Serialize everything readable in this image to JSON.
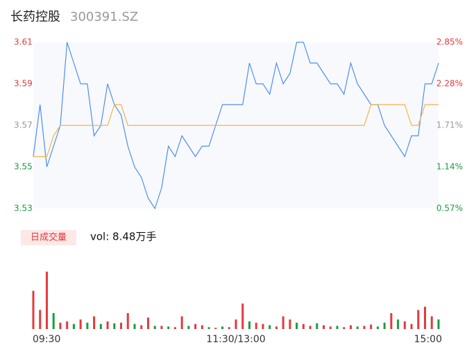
{
  "header": {
    "name": "长药控股",
    "code": "300391.SZ"
  },
  "chart_data": {
    "type": "intraday",
    "categories": [
      "09:30",
      null,
      null,
      null,
      null,
      null,
      null,
      null,
      null,
      null,
      null,
      null,
      null,
      null,
      null,
      null,
      null,
      null,
      null,
      null,
      null,
      null,
      null,
      null,
      null,
      null,
      null,
      null,
      null,
      null,
      "11:30/13:00",
      null,
      null,
      null,
      null,
      null,
      null,
      null,
      null,
      null,
      null,
      null,
      null,
      null,
      null,
      null,
      null,
      null,
      null,
      null,
      null,
      null,
      null,
      null,
      null,
      null,
      null,
      null,
      null,
      null,
      "15:00"
    ],
    "series": [
      {
        "name": "price",
        "color": "#4d8ef0",
        "values": [
          3.555,
          3.58,
          3.55,
          3.56,
          3.57,
          3.61,
          3.6,
          3.59,
          3.59,
          3.565,
          3.57,
          3.59,
          3.58,
          3.575,
          3.56,
          3.55,
          3.545,
          3.535,
          3.53,
          3.54,
          3.56,
          3.555,
          3.565,
          3.56,
          3.555,
          3.56,
          3.56,
          3.57,
          3.58,
          3.58,
          3.58,
          3.58,
          3.6,
          3.59,
          3.59,
          3.585,
          3.6,
          3.59,
          3.595,
          3.61,
          3.61,
          3.6,
          3.6,
          3.595,
          3.59,
          3.59,
          3.585,
          3.6,
          3.59,
          3.585,
          3.58,
          3.58,
          3.57,
          3.565,
          3.56,
          3.555,
          3.565,
          3.565,
          3.59,
          3.59,
          3.6
        ]
      },
      {
        "name": "average",
        "color": "#f5b342",
        "values": [
          3.555,
          3.555,
          3.555,
          3.565,
          3.57,
          3.57,
          3.57,
          3.57,
          3.57,
          3.57,
          3.57,
          3.57,
          3.58,
          3.58,
          3.57,
          3.57,
          3.57,
          3.57,
          3.57,
          3.57,
          3.57,
          3.57,
          3.57,
          3.57,
          3.57,
          3.57,
          3.57,
          3.57,
          3.57,
          3.57,
          3.57,
          3.57,
          3.57,
          3.57,
          3.57,
          3.57,
          3.57,
          3.57,
          3.57,
          3.57,
          3.57,
          3.57,
          3.57,
          3.57,
          3.57,
          3.57,
          3.57,
          3.57,
          3.57,
          3.57,
          3.58,
          3.58,
          3.58,
          3.58,
          3.58,
          3.58,
          3.57,
          3.57,
          3.58,
          3.58,
          3.58
        ]
      }
    ],
    "ylim": [
      3.53,
      3.61
    ],
    "yticks": [
      3.61,
      3.59,
      3.57,
      3.55,
      3.53
    ],
    "y2lim": [
      0.57,
      2.85
    ],
    "y2ticks": [
      {
        "value": 2.85,
        "label": "2.85%"
      },
      {
        "value": 2.28,
        "label": "2.28%"
      },
      {
        "value": 1.71,
        "label": "1.71%"
      },
      {
        "value": 1.14,
        "label": "1.14%"
      },
      {
        "value": 0.57,
        "label": "0.57%"
      }
    ],
    "volume_label": "日成交量",
    "volume_text": "vol: 8.48万手",
    "volume": [
      60,
      30,
      90,
      25,
      10,
      12,
      8,
      15,
      10,
      20,
      8,
      12,
      9,
      10,
      25,
      8,
      6,
      18,
      5,
      5,
      4,
      3,
      20,
      5,
      8,
      6,
      3,
      2,
      4,
      3,
      15,
      40,
      12,
      10,
      8,
      6,
      4,
      20,
      15,
      10,
      8,
      5,
      9,
      6,
      4,
      5,
      3,
      6,
      4,
      5,
      7,
      4,
      10,
      25,
      15,
      12,
      8,
      30,
      35,
      20,
      15
    ],
    "volume_colors": [
      "#e4393c",
      "#e4393c",
      "#e4393c",
      "#1a9c3f",
      "#e4393c",
      "#e4393c",
      "#1a9c3f",
      "#e4393c",
      "#1a9c3f",
      "#e4393c",
      "#1a9c3f",
      "#e4393c",
      "#1a9c3f",
      "#e4393c",
      "#e4393c",
      "#1a9c3f",
      "#e4393c",
      "#e4393c",
      "#1a9c3f",
      "#e4393c",
      "#1a9c3f",
      "#e4393c",
      "#e4393c",
      "#1a9c3f",
      "#e4393c",
      "#e4393c",
      "#1a9c3f",
      "#e4393c",
      "#1a9c3f",
      "#e4393c",
      "#e4393c",
      "#e4393c",
      "#1a9c3f",
      "#e4393c",
      "#e4393c",
      "#1a9c3f",
      "#e4393c",
      "#e4393c",
      "#e4393c",
      "#1a9c3f",
      "#e4393c",
      "#e4393c",
      "#1a9c3f",
      "#e4393c",
      "#e4393c",
      "#1a9c3f",
      "#e4393c",
      "#e4393c",
      "#1a9c3f",
      "#e4393c",
      "#e4393c",
      "#1a9c3f",
      "#1a9c3f",
      "#e4393c",
      "#1a9c3f",
      "#e4393c",
      "#e4393c",
      "#e4393c",
      "#e4393c",
      "#e4393c",
      "#1a9c3f"
    ],
    "volume_ylim": [
      0,
      100
    ]
  }
}
